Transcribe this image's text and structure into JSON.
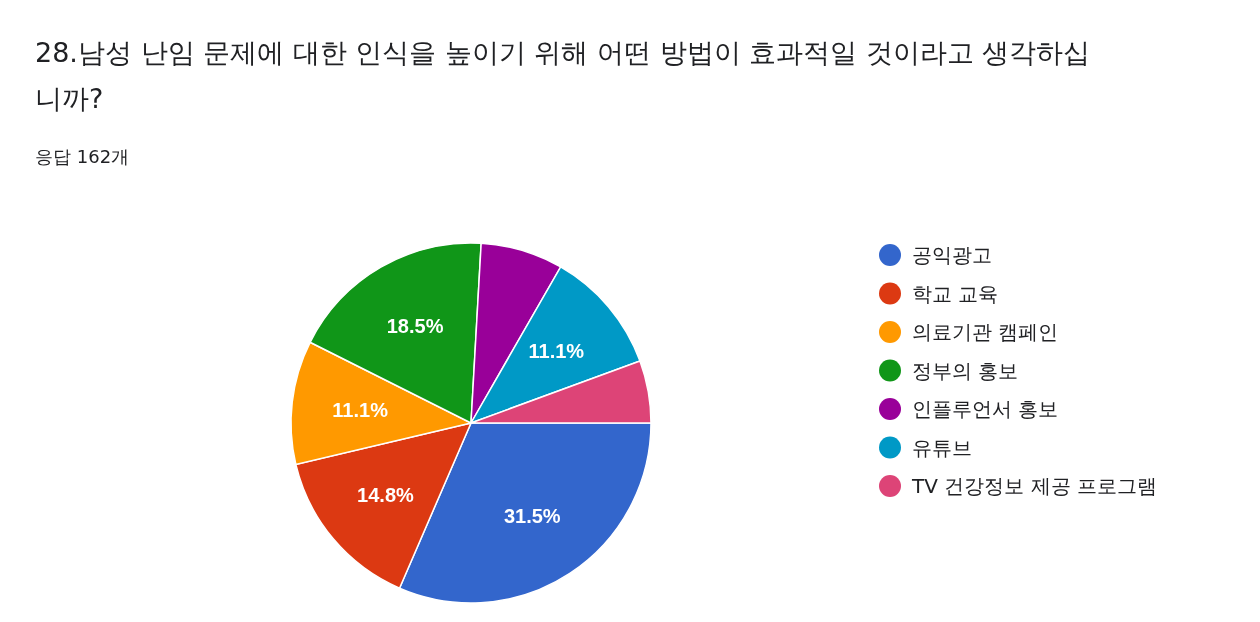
{
  "chart_data": {
    "type": "pie",
    "title": "28.남성 난임 문제에 대한 인식을 높이기 위해 어떤 방법이 효과적일 것이라고 생각하십니까?",
    "subtitle": "응답 162개",
    "categories": [
      "공익광고",
      "학교 교육",
      "의료기관 캠페인",
      "정부의 홍보",
      "인플루언서 홍보",
      "유튜브",
      "TV 건강정보 제공 프로그램"
    ],
    "values": [
      31.5,
      14.8,
      11.1,
      18.5,
      7.4,
      11.1,
      5.6
    ],
    "value_labels": [
      "31.5%",
      "14.8%",
      "11.1%",
      "18.5%",
      null,
      "11.1%",
      null
    ],
    "colors": [
      "#3366cc",
      "#dc3912",
      "#ff9900",
      "#109618",
      "#990099",
      "#0099c6",
      "#dd4477"
    ],
    "legend": "right"
  }
}
